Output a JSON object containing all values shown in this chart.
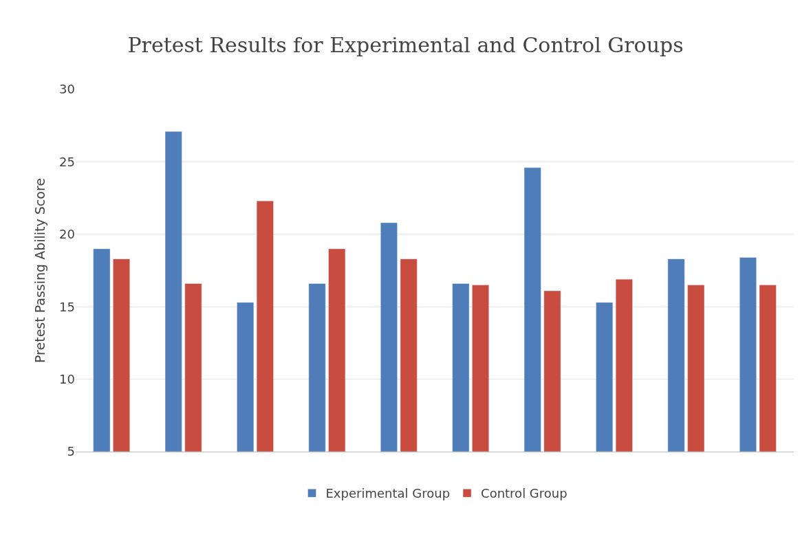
{
  "chart_data": {
    "type": "bar",
    "title": "Pretest Results for Experimental and Control Groups",
    "ylabel": "Pretest Passing Ability Score",
    "categories": [
      null,
      null,
      null,
      null,
      null,
      null,
      null,
      null,
      null,
      null
    ],
    "series": [
      {
        "name": "Experimental Group",
        "color": "#4f7dba",
        "values": [
          19.0,
          27.1,
          15.3,
          16.6,
          20.8,
          16.6,
          24.6,
          15.3,
          18.3,
          18.4
        ]
      },
      {
        "name": "Control Group",
        "color": "#c94c40",
        "values": [
          18.3,
          16.6,
          22.3,
          19.0,
          18.3,
          16.5,
          16.1,
          16.9,
          16.5,
          16.5
        ]
      }
    ],
    "ylim": [
      5,
      30
    ],
    "yticks": [
      5,
      10,
      15,
      20,
      25,
      30
    ],
    "grid": "y",
    "legend": "bottom"
  }
}
